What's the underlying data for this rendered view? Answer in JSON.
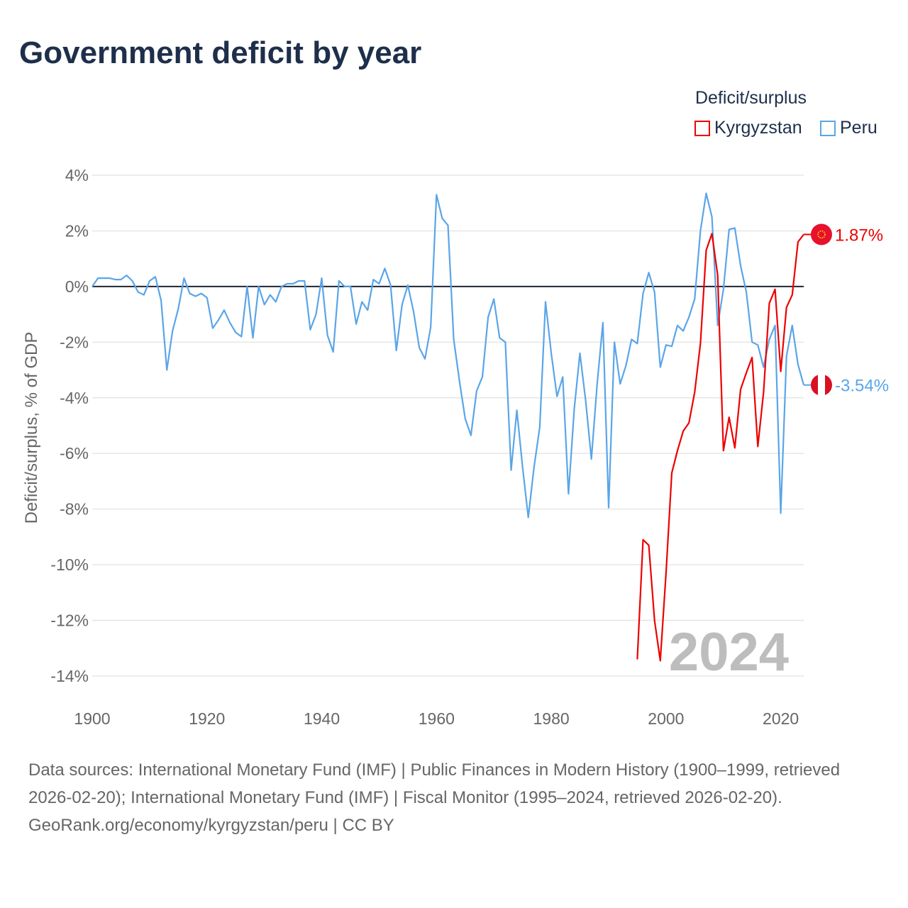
{
  "title": "Government deficit by year",
  "legend": {
    "title": "Deficit/surplus",
    "items": [
      {
        "name": "Kyrgyzstan",
        "color": "#ee0000"
      },
      {
        "name": "Peru",
        "color": "#5aa5e8"
      }
    ]
  },
  "watermark_year": "2024",
  "footer": {
    "sources": "Data sources: International Monetary Fund (IMF) | Public Finances in Modern History (1900–1999, retrieved 2026-02-20); International Monetary Fund (IMF) | Fiscal Monitor (1995–2024, retrieved 2026-02-20).",
    "credit": "GeoRank.org/economy/kyrgyzstan/peru | CC BY"
  },
  "chart_data": {
    "type": "line",
    "title": "Government deficit by year",
    "xlabel": "",
    "ylabel": "Deficit/surplus, % of GDP",
    "xlim": [
      1900,
      2024
    ],
    "ylim": [
      -14,
      4
    ],
    "x_ticks": [
      "1900",
      "1920",
      "1940",
      "1960",
      "1980",
      "2000",
      "2020"
    ],
    "y_ticks": [
      "4%",
      "2%",
      "0%",
      "-2%",
      "-4%",
      "-6%",
      "-8%",
      "-10%",
      "-12%",
      "-14%"
    ],
    "grid": true,
    "legend_position": "top-right",
    "series": [
      {
        "name": "Peru",
        "color": "#5aa5e8",
        "end_label": "-3.54%",
        "start_year": 1900,
        "values": [
          0,
          0.3,
          0.3,
          0.3,
          0.25,
          0.25,
          0.4,
          0.2,
          -0.2,
          -0.3,
          0.2,
          0.35,
          -0.5,
          -3.0,
          -1.6,
          -0.8,
          0.3,
          -0.25,
          -0.35,
          -0.25,
          -0.4,
          -1.5,
          -1.2,
          -0.85,
          -1.3,
          -1.65,
          -1.8,
          0,
          -1.85,
          0,
          -0.65,
          -0.3,
          -0.55,
          0,
          0.1,
          0.1,
          0.2,
          0.2,
          -1.55,
          -1.0,
          0.3,
          -1.75,
          -2.35,
          0.2,
          0,
          0,
          -1.35,
          -0.55,
          -0.85,
          0.25,
          0.1,
          0.65,
          0.05,
          -2.3,
          -0.65,
          0.05,
          -0.9,
          -2.2,
          -2.6,
          -1.45,
          3.3,
          2.45,
          2.2,
          -1.9,
          -3.4,
          -4.75,
          -5.35,
          -3.75,
          -3.25,
          -1.1,
          -0.45,
          -1.85,
          -2.0,
          -6.6,
          -4.45,
          -6.5,
          -8.3,
          -6.5,
          -5.05,
          -0.55,
          -2.4,
          -3.95,
          -3.25,
          -7.45,
          -4.4,
          -2.4,
          -4.1,
          -6.2,
          -3.5,
          -1.3,
          -7.95,
          -2.0,
          -3.5,
          -2.85,
          -1.9,
          -2.05,
          -0.25,
          0.5,
          -0.2,
          -2.9,
          -2.1,
          -2.15,
          -1.4,
          -1.6,
          -1.1,
          -0.45,
          2.0,
          3.35,
          2.5,
          -1.4,
          -0.1,
          2.05,
          2.1,
          0.75,
          -0.2,
          -2.0,
          -2.1,
          -2.9,
          -1.9,
          -1.4,
          -8.15,
          -2.5,
          -1.4,
          -2.8,
          -3.54
        ]
      },
      {
        "name": "Kyrgyzstan",
        "color": "#ee0000",
        "end_label": "1.87%",
        "start_year": 1995,
        "values": [
          -13.4,
          -9.1,
          -9.3,
          -12.0,
          -13.45,
          -10.3,
          -6.7,
          -5.9,
          -5.2,
          -4.9,
          -3.8,
          -2.05,
          1.3,
          1.9,
          0.4,
          -5.9,
          -4.7,
          -5.8,
          -3.7,
          -3.1,
          -2.55,
          -5.75,
          -3.8,
          -0.6,
          -0.1,
          -3.05,
          -0.75,
          -0.3,
          1.6,
          1.87
        ]
      }
    ]
  }
}
